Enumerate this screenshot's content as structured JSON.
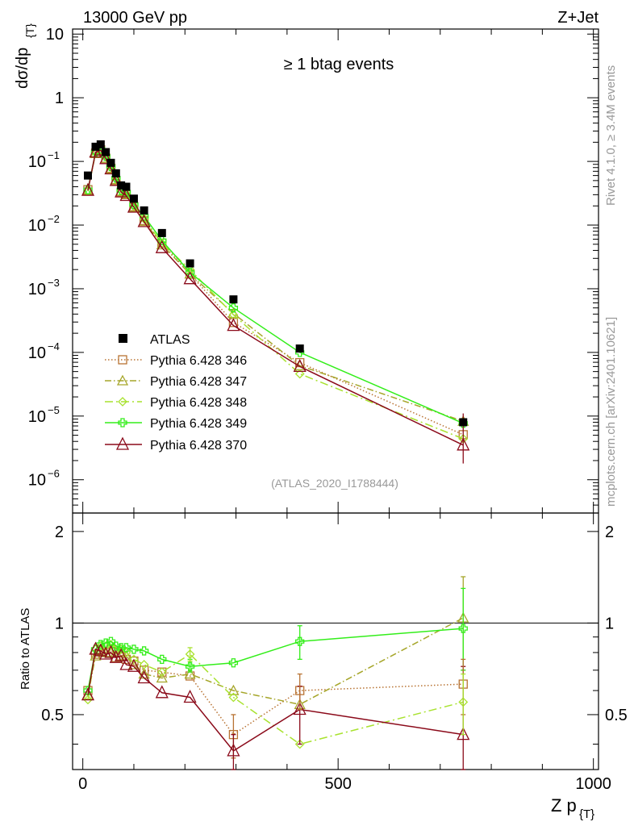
{
  "header": {
    "left": "13000 GeV pp",
    "right": "Z+Jet"
  },
  "plot_title": "≥ 1 btag events",
  "y_label_main": "dσ/dp",
  "y_label_main_sub": "{T}",
  "y_label_ratio": "Ratio to ATLAS",
  "x_label": "Z p",
  "x_label_sub": "{T}",
  "side_text_top": "Rivet 4.1.0, ≥ 3.4M events",
  "side_text_bottom": "mcplots.cern.ch [arXiv:2401.10621]",
  "analysis_id": "(ATLAS_2020_I1788444)",
  "legend": {
    "atlas": "ATLAS",
    "s346": "Pythia 6.428 346",
    "s347": "Pythia 6.428 347",
    "s348": "Pythia 6.428 348",
    "s349": "Pythia 6.428 349",
    "s370": "Pythia 6.428 370"
  },
  "ticks": {
    "main_y": [
      "10",
      "1",
      "10",
      "10",
      "10",
      "10",
      "10",
      "10"
    ],
    "main_y_exp": [
      "",
      "",
      "−1",
      "−2",
      "−3",
      "−4",
      "−5",
      "−6"
    ],
    "ratio_y": [
      "2",
      "1",
      "0.5"
    ],
    "x": [
      "0",
      "500",
      "1000"
    ]
  },
  "colors": {
    "atlas": "#000000",
    "s346": "#b87333",
    "s347": "#a6a62a",
    "s348": "#a8e22e",
    "s349": "#33ee1a",
    "s370": "#8b0a1a"
  },
  "chart_data": {
    "type": "scatter",
    "xlim": [
      -20,
      1010
    ],
    "main_ylim": [
      3e-07,
      12
    ],
    "ratio_ylim": [
      0.33,
      2.3
    ],
    "x": [
      10,
      25,
      35,
      45,
      55,
      65,
      75,
      85,
      100,
      120,
      155,
      210,
      295,
      425,
      745
    ],
    "series": [
      {
        "key": "atlas",
        "name": "ATLAS",
        "values": [
          0.06,
          0.17,
          0.185,
          0.14,
          0.095,
          0.065,
          0.042,
          0.04,
          0.026,
          0.017,
          0.0075,
          0.0025,
          0.00068,
          0.000115,
          8e-06
        ],
        "ratio": [
          1,
          1,
          1,
          1,
          1,
          1,
          1,
          1,
          1,
          1,
          1,
          1,
          1,
          1,
          1
        ]
      },
      {
        "key": "s346",
        "name": "Pythia 6.428 346",
        "values": [
          0.036,
          0.135,
          0.152,
          0.112,
          0.078,
          0.05,
          0.033,
          0.03,
          0.0195,
          0.0118,
          0.0052,
          0.0017,
          0.000295,
          6.9e-05,
          5.1e-06
        ],
        "ratio": [
          0.6,
          0.79,
          0.82,
          0.8,
          0.82,
          0.77,
          0.78,
          0.76,
          0.75,
          0.7,
          0.69,
          0.67,
          0.43,
          0.6,
          0.63
        ]
      },
      {
        "key": "s347",
        "name": "Pythia 6.428 347",
        "values": [
          0.035,
          0.133,
          0.15,
          0.112,
          0.076,
          0.052,
          0.034,
          0.031,
          0.019,
          0.0115,
          0.0049,
          0.0017,
          0.00041,
          6.2e-05,
          8.3e-06
        ],
        "ratio": [
          0.58,
          0.78,
          0.81,
          0.8,
          0.8,
          0.8,
          0.8,
          0.78,
          0.73,
          0.68,
          0.66,
          0.68,
          0.6,
          0.54,
          1.04
        ]
      },
      {
        "key": "s348",
        "name": "Pythia 6.428 348",
        "values": [
          0.034,
          0.14,
          0.155,
          0.118,
          0.081,
          0.053,
          0.035,
          0.031,
          0.0198,
          0.0125,
          0.0052,
          0.002,
          0.00039,
          4.6e-05,
          4.4e-06
        ],
        "ratio": [
          0.56,
          0.82,
          0.84,
          0.84,
          0.85,
          0.82,
          0.82,
          0.8,
          0.76,
          0.73,
          0.69,
          0.79,
          0.57,
          0.4,
          0.55
        ]
      },
      {
        "key": "s349",
        "name": "Pythia 6.428 349",
        "values": [
          0.036,
          0.14,
          0.157,
          0.12,
          0.083,
          0.055,
          0.035,
          0.033,
          0.021,
          0.0138,
          0.0057,
          0.0018,
          0.0005,
          0.0001,
          7.7e-06
        ],
        "ratio": [
          0.6,
          0.82,
          0.85,
          0.86,
          0.87,
          0.84,
          0.83,
          0.83,
          0.82,
          0.81,
          0.76,
          0.72,
          0.74,
          0.87,
          0.96
        ]
      },
      {
        "key": "s370",
        "name": "Pythia 6.428 370",
        "values": [
          0.035,
          0.14,
          0.15,
          0.11,
          0.076,
          0.05,
          0.033,
          0.029,
          0.019,
          0.0113,
          0.0044,
          0.00143,
          0.000264,
          6e-05,
          3.5e-06
        ],
        "ratio": [
          0.58,
          0.82,
          0.81,
          0.79,
          0.8,
          0.77,
          0.78,
          0.73,
          0.72,
          0.66,
          0.59,
          0.57,
          0.38,
          0.52,
          0.43
        ]
      }
    ],
    "ratio_errors": [
      {
        "key": "s346",
        "index": 12,
        "lo": 0.36,
        "hi": 0.5
      },
      {
        "key": "s370",
        "index": 12,
        "lo": 0.33,
        "hi": 0.43
      },
      {
        "key": "s349",
        "index": 13,
        "lo": 0.76,
        "hi": 0.98
      },
      {
        "key": "s370",
        "index": 13,
        "lo": 0.4,
        "hi": 0.62
      },
      {
        "key": "s346",
        "index": 13,
        "lo": 0.52,
        "hi": 0.68
      },
      {
        "key": "s347",
        "index": 14,
        "lo": 0.7,
        "hi": 1.42
      },
      {
        "key": "s349",
        "index": 14,
        "lo": 0.7,
        "hi": 1.3
      },
      {
        "key": "s370",
        "index": 14,
        "lo": 0.33,
        "hi": 0.72
      },
      {
        "key": "s346",
        "index": 14,
        "lo": 0.5,
        "hi": 0.76
      },
      {
        "key": "s348",
        "index": 14,
        "lo": 0.43,
        "hi": 0.68
      },
      {
        "key": "s349",
        "index": 11,
        "lo": 0.69,
        "hi": 0.76
      },
      {
        "key": "s348",
        "index": 11,
        "lo": 0.75,
        "hi": 0.83
      }
    ]
  }
}
